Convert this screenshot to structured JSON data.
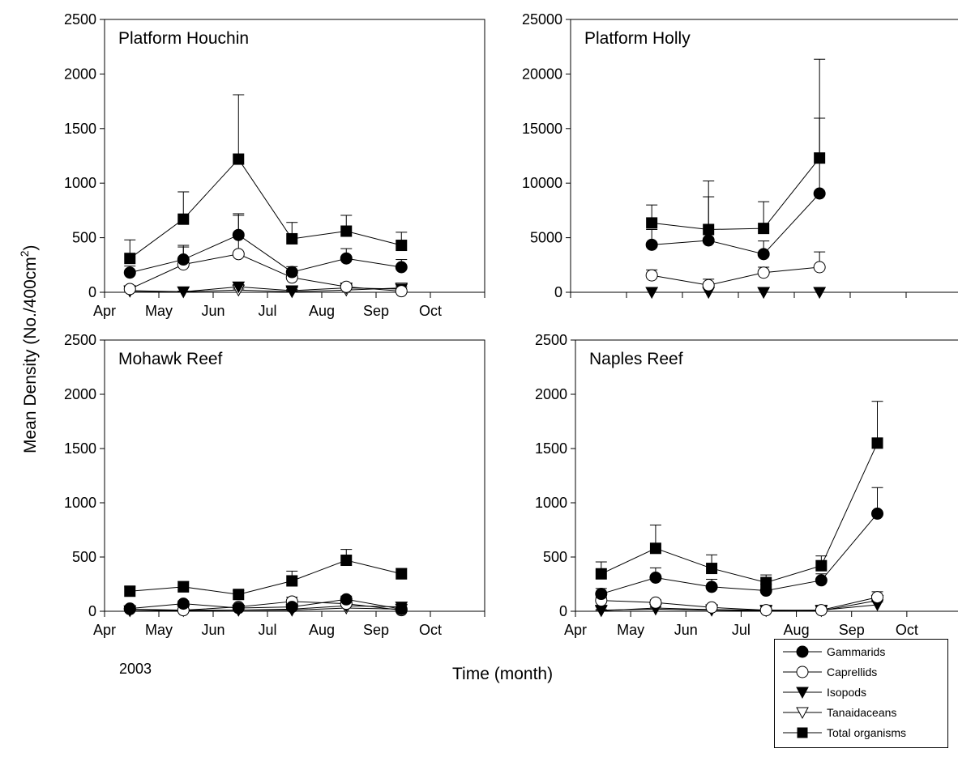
{
  "figure": {
    "y_axis_label": "Mean Density (No./400cm",
    "y_axis_label_sup": "2",
    "y_axis_label_close": ")",
    "x_axis_label": "Time (month)",
    "year_note": "2003"
  },
  "legend": [
    {
      "name": "Gammarids",
      "marker": "circle-filled"
    },
    {
      "name": "Caprellids",
      "marker": "circle-open"
    },
    {
      "name": "Isopods",
      "marker": "triangle-down-filled"
    },
    {
      "name": "Tanaidaceans",
      "marker": "triangle-down-open"
    },
    {
      "name": "Total organisms",
      "marker": "square-filled"
    }
  ],
  "chart_data": [
    {
      "type": "line",
      "title": "Platform Houchin",
      "x_ticks": [
        "Apr",
        "May",
        "Jun",
        "Jul",
        "Aug",
        "Sep",
        "Oct"
      ],
      "ylim": [
        0,
        2500
      ],
      "y_ticks": [
        0,
        500,
        1000,
        1500,
        2000,
        2500
      ],
      "x": [
        "2003-04-15",
        "2003-05-15",
        "2003-06-15",
        "2003-07-15",
        "2003-08-15",
        "2003-09-15"
      ],
      "series": [
        {
          "name": "Gammarids",
          "values": [
            180,
            300,
            525,
            185,
            310,
            230
          ],
          "error": [
            60,
            130,
            180,
            50,
            90,
            70
          ]
        },
        {
          "name": "Caprellids",
          "values": [
            30,
            255,
            350,
            135,
            50,
            10
          ],
          "error": [
            15,
            160,
            370,
            50,
            25,
            8
          ]
        },
        {
          "name": "Isopods",
          "values": [
            15,
            5,
            50,
            15,
            40,
            30
          ],
          "error": [
            8,
            5,
            20,
            10,
            15,
            12
          ]
        },
        {
          "name": "Tanaidaceans",
          "values": [
            10,
            5,
            20,
            5,
            20,
            40
          ],
          "error": [
            5,
            5,
            10,
            5,
            10,
            15
          ]
        },
        {
          "name": "Total organisms",
          "values": [
            310,
            670,
            1220,
            490,
            560,
            430
          ],
          "error": [
            170,
            250,
            590,
            150,
            145,
            120
          ]
        }
      ]
    },
    {
      "type": "line",
      "title": "Platform Holly",
      "x_ticks": [
        "",
        "",
        "",
        "",
        "",
        "",
        ""
      ],
      "ylim": [
        0,
        25000
      ],
      "y_ticks": [
        0,
        5000,
        10000,
        15000,
        20000,
        25000
      ],
      "x": [
        "2003-05-15",
        "2003-06-15",
        "2003-07-15",
        "2003-08-15"
      ],
      "series": [
        {
          "name": "Gammarids",
          "values": [
            4350,
            4750,
            3500,
            9050
          ],
          "error": [
            1400,
            4000,
            1200,
            6900
          ]
        },
        {
          "name": "Caprellids",
          "values": [
            1550,
            650,
            1800,
            2300
          ],
          "error": [
            500,
            550,
            500,
            1400
          ]
        },
        {
          "name": "Isopods",
          "values": [
            0,
            0,
            0,
            0
          ],
          "error": [
            0,
            0,
            0,
            0
          ]
        },
        {
          "name": "Tanaidaceans",
          "values": [
            0,
            0,
            0,
            0
          ],
          "error": [
            0,
            0,
            0,
            0
          ]
        },
        {
          "name": "Total organisms",
          "values": [
            6350,
            5750,
            5850,
            12300
          ],
          "error": [
            1650,
            4450,
            2450,
            9050
          ]
        }
      ]
    },
    {
      "type": "line",
      "title": "Mohawk Reef",
      "x_ticks": [
        "Apr",
        "May",
        "Jun",
        "Jul",
        "Aug",
        "Sep",
        "Oct"
      ],
      "ylim": [
        0,
        2500
      ],
      "y_ticks": [
        0,
        500,
        1000,
        1500,
        2000,
        2500
      ],
      "x": [
        "2003-04-15",
        "2003-05-15",
        "2003-06-15",
        "2003-07-15",
        "2003-08-15",
        "2003-09-15"
      ],
      "series": [
        {
          "name": "Gammarids",
          "values": [
            25,
            70,
            30,
            40,
            110,
            20
          ],
          "error": [
            10,
            25,
            15,
            25,
            30,
            10
          ]
        },
        {
          "name": "Caprellids",
          "values": [
            20,
            10,
            40,
            90,
            70,
            10
          ],
          "error": [
            10,
            8,
            15,
            40,
            25,
            8
          ]
        },
        {
          "name": "Isopods",
          "values": [
            5,
            10,
            10,
            20,
            50,
            40
          ],
          "error": [
            5,
            5,
            5,
            10,
            20,
            15
          ]
        },
        {
          "name": "Tanaidaceans",
          "values": [
            5,
            5,
            10,
            10,
            30,
            20
          ],
          "error": [
            5,
            5,
            5,
            5,
            15,
            10
          ]
        },
        {
          "name": "Total organisms",
          "values": [
            185,
            225,
            155,
            280,
            470,
            345
          ],
          "error": [
            40,
            50,
            35,
            90,
            100,
            50
          ]
        }
      ]
    },
    {
      "type": "line",
      "title": "Naples Reef",
      "x_ticks": [
        "Apr",
        "May",
        "Jun",
        "Jul",
        "Aug",
        "Sep",
        "Oct"
      ],
      "ylim": [
        0,
        2500
      ],
      "y_ticks": [
        0,
        500,
        1000,
        1500,
        2000,
        2500
      ],
      "x": [
        "2003-04-15",
        "2003-05-15",
        "2003-06-15",
        "2003-07-15",
        "2003-08-15",
        "2003-09-15"
      ],
      "series": [
        {
          "name": "Gammarids",
          "values": [
            160,
            310,
            225,
            190,
            285,
            900
          ],
          "error": [
            50,
            90,
            70,
            60,
            60,
            240
          ]
        },
        {
          "name": "Caprellids",
          "values": [
            100,
            80,
            35,
            10,
            10,
            130
          ],
          "error": [
            30,
            25,
            15,
            5,
            5,
            50
          ]
        },
        {
          "name": "Isopods",
          "values": [
            10,
            20,
            10,
            5,
            10,
            60
          ],
          "error": [
            5,
            10,
            5,
            5,
            5,
            25
          ]
        },
        {
          "name": "Tanaidaceans",
          "values": [
            5,
            30,
            15,
            10,
            5,
            100
          ],
          "error": [
            5,
            10,
            5,
            5,
            5,
            40
          ]
        },
        {
          "name": "Total organisms",
          "values": [
            345,
            580,
            395,
            265,
            420,
            1550
          ],
          "error": [
            110,
            215,
            125,
            70,
            90,
            385
          ]
        }
      ]
    }
  ]
}
